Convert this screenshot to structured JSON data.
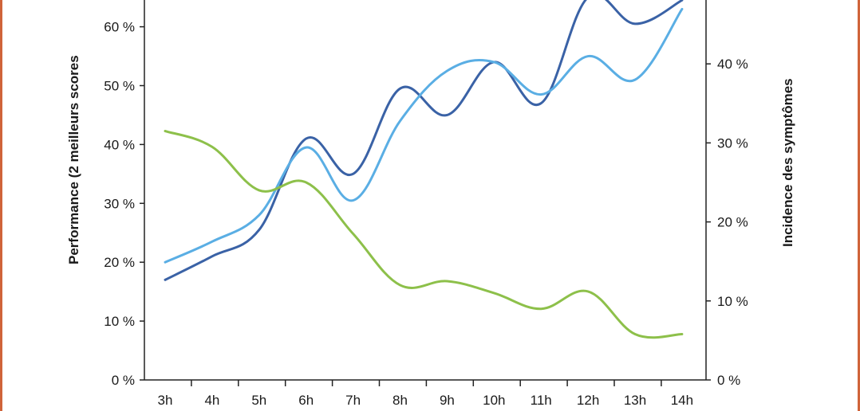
{
  "chart_data": {
    "type": "line",
    "categories": [
      "3h",
      "4h",
      "5h",
      "6h",
      "7h",
      "8h",
      "9h",
      "10h",
      "11h",
      "12h",
      "13h",
      "14h"
    ],
    "ylabel_left": "Performance (2 meilleurs scores",
    "ylabel_right": "Incidence des symptômes",
    "ylim_left": [
      0,
      60
    ],
    "ylim_right": [
      0,
      40
    ],
    "left_ticks": [
      "0 %",
      "10 %",
      "20 %",
      "30 %",
      "40 %",
      "50 %",
      "60 %"
    ],
    "right_ticks": [
      "0 %",
      "10 %",
      "20 %",
      "30 %",
      "40 %"
    ],
    "grid": false,
    "series": [
      {
        "axis": "left",
        "color": "#3a62a6",
        "values": [
          17,
          21,
          25.5,
          41,
          35,
          49.5,
          45,
          54,
          47,
          65,
          60.5,
          64.5
        ]
      },
      {
        "axis": "left",
        "color": "#5aaee4",
        "values": [
          20,
          23.5,
          28,
          39.5,
          30.5,
          44,
          52.5,
          54,
          48.5,
          55,
          51,
          63
        ]
      },
      {
        "axis": "right",
        "color": "#8dc04a",
        "values": [
          31.5,
          29.5,
          24,
          25,
          18.5,
          12,
          12.5,
          11,
          9,
          11.2,
          5.8,
          5.8
        ]
      }
    ]
  }
}
